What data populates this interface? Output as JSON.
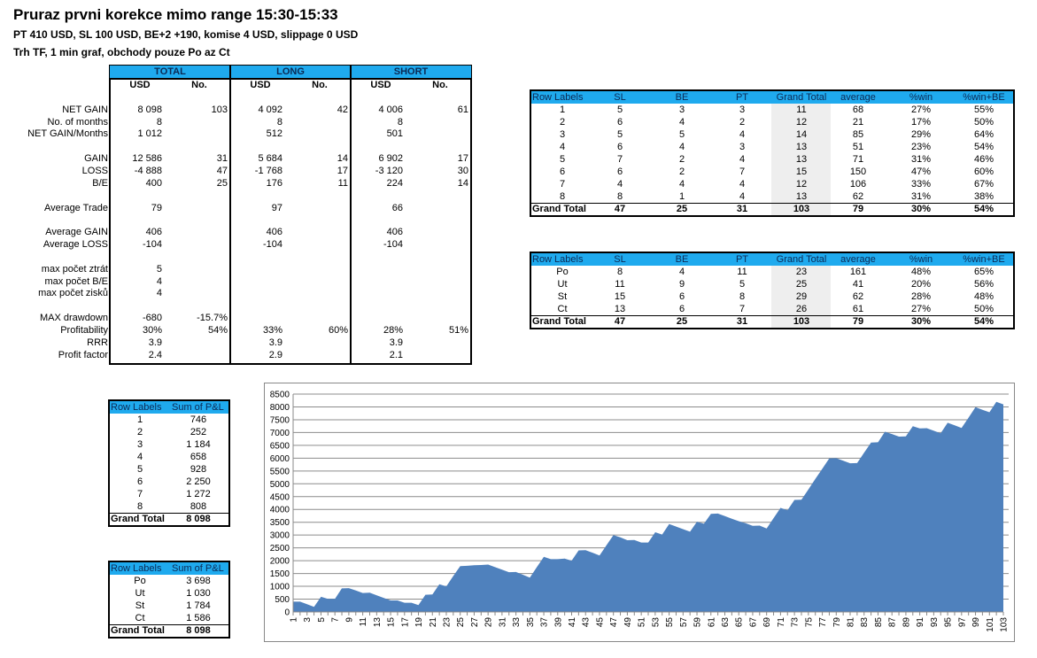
{
  "header": {
    "title": "Pruraz prvni korekce mimo range 15:30-15:33",
    "params": "PT 410 USD,  SL 100 USD,  BE+2  +190,  komise 4 USD, slippage 0 USD",
    "market": "Trh TF, 1 min graf, obchody pouze Po az Ct"
  },
  "stats": {
    "groups": [
      "TOTAL",
      "LONG",
      "SHORT"
    ],
    "subheaders": [
      "USD",
      "No."
    ],
    "rows": [
      {
        "label": "NET GAIN",
        "slot": 2,
        "v": [
          "8 098",
          "103",
          "4 092",
          "42",
          "4 006",
          "61"
        ]
      },
      {
        "label": "No. of months",
        "slot": 3,
        "v": [
          "8",
          "",
          "8",
          "",
          "8",
          ""
        ]
      },
      {
        "label": "NET GAIN/Months",
        "slot": 4,
        "v": [
          "1 012",
          "",
          "512",
          "",
          "501",
          ""
        ]
      },
      {
        "label": "GAIN",
        "slot": 6,
        "v": [
          "12 586",
          "31",
          "5 684",
          "14",
          "6 902",
          "17"
        ]
      },
      {
        "label": "LOSS",
        "slot": 7,
        "v": [
          "-4 888",
          "47",
          "-1 768",
          "17",
          "-3 120",
          "30"
        ]
      },
      {
        "label": "B/E",
        "slot": 8,
        "v": [
          "400",
          "25",
          "176",
          "11",
          "224",
          "14"
        ]
      },
      {
        "label": "Average Trade",
        "slot": 10,
        "v": [
          "79",
          "",
          "97",
          "",
          "66",
          ""
        ]
      },
      {
        "label": "Average GAIN",
        "slot": 12,
        "v": [
          "406",
          "",
          "406",
          "",
          "406",
          ""
        ]
      },
      {
        "label": "Average LOSS",
        "slot": 13,
        "v": [
          "-104",
          "",
          "-104",
          "",
          "-104",
          ""
        ]
      },
      {
        "label": "max počet ztrát",
        "slot": 15,
        "v": [
          "5",
          "",
          "",
          "",
          "",
          ""
        ]
      },
      {
        "label": "max počet B/E",
        "slot": 16,
        "v": [
          "4",
          "",
          "",
          "",
          "",
          ""
        ]
      },
      {
        "label": "max počet zisků",
        "slot": 17,
        "v": [
          "4",
          "",
          "",
          "",
          "",
          ""
        ]
      },
      {
        "label": "MAX drawdown",
        "slot": 19,
        "v": [
          "-680",
          "-15.7%",
          "",
          "",
          "",
          ""
        ]
      },
      {
        "label": "Profitability",
        "slot": 20,
        "v": [
          "30%",
          "54%",
          "33%",
          "60%",
          "28%",
          "51%"
        ]
      },
      {
        "label": "RRR",
        "slot": 21,
        "v": [
          "3.9",
          "",
          "3.9",
          "",
          "3.9",
          ""
        ]
      },
      {
        "label": "Profit factor",
        "slot": 22,
        "v": [
          "2.4",
          "",
          "2.9",
          "",
          "2.1",
          ""
        ]
      }
    ]
  },
  "pivot_month": {
    "columns": [
      "Row Labels",
      "SL",
      "BE",
      "PT",
      "Grand Total",
      "average",
      "%win",
      "%win+BE"
    ],
    "rows": [
      [
        "1",
        "5",
        "3",
        "3",
        "11",
        "68",
        "27%",
        "55%"
      ],
      [
        "2",
        "6",
        "4",
        "2",
        "12",
        "21",
        "17%",
        "50%"
      ],
      [
        "3",
        "5",
        "5",
        "4",
        "14",
        "85",
        "29%",
        "64%"
      ],
      [
        "4",
        "6",
        "4",
        "3",
        "13",
        "51",
        "23%",
        "54%"
      ],
      [
        "5",
        "7",
        "2",
        "4",
        "13",
        "71",
        "31%",
        "46%"
      ],
      [
        "6",
        "6",
        "2",
        "7",
        "15",
        "150",
        "47%",
        "60%"
      ],
      [
        "7",
        "4",
        "4",
        "4",
        "12",
        "106",
        "33%",
        "67%"
      ],
      [
        "8",
        "8",
        "1",
        "4",
        "13",
        "62",
        "31%",
        "38%"
      ]
    ],
    "total": [
      "Grand Total",
      "47",
      "25",
      "31",
      "103",
      "79",
      "30%",
      "54%"
    ]
  },
  "pivot_day": {
    "columns": [
      "Row Labels",
      "SL",
      "BE",
      "PT",
      "Grand Total",
      "average",
      "%win",
      "%win+BE"
    ],
    "rows": [
      [
        "Po",
        "8",
        "4",
        "11",
        "23",
        "161",
        "48%",
        "65%"
      ],
      [
        "Ut",
        "11",
        "9",
        "5",
        "25",
        "41",
        "20%",
        "56%"
      ],
      [
        "St",
        "15",
        "6",
        "8",
        "29",
        "62",
        "28%",
        "48%"
      ],
      [
        "Ct",
        "13",
        "6",
        "7",
        "26",
        "61",
        "27%",
        "50%"
      ]
    ],
    "total": [
      "Grand Total",
      "47",
      "25",
      "31",
      "103",
      "79",
      "30%",
      "54%"
    ]
  },
  "pnl_month": {
    "columns": [
      "Row Labels",
      "Sum of P&L"
    ],
    "rows": [
      [
        "1",
        "746"
      ],
      [
        "2",
        "252"
      ],
      [
        "3",
        "1 184"
      ],
      [
        "4",
        "658"
      ],
      [
        "5",
        "928"
      ],
      [
        "6",
        "2 250"
      ],
      [
        "7",
        "1 272"
      ],
      [
        "8",
        "808"
      ]
    ],
    "total": [
      "Grand Total",
      "8 098"
    ]
  },
  "pnl_day": {
    "columns": [
      "Row Labels",
      "Sum of P&L"
    ],
    "rows": [
      [
        "Po",
        "3 698"
      ],
      [
        "Ut",
        "1 030"
      ],
      [
        "St",
        "1 784"
      ],
      [
        "Ct",
        "1 586"
      ]
    ],
    "total": [
      "Grand Total",
      "8 098"
    ]
  },
  "colors": {
    "header": "#1FAAEE",
    "area": "#4F81BD",
    "grid": "#8C8C8C"
  },
  "chart_data": {
    "type": "area",
    "title": "",
    "xlabel": "",
    "ylabel": "",
    "ylim": [
      0,
      8500
    ],
    "yticks": [
      0,
      500,
      1000,
      1500,
      2000,
      2500,
      3000,
      3500,
      4000,
      4500,
      5000,
      5500,
      6000,
      6500,
      7000,
      7500,
      8000,
      8500
    ],
    "grid": true,
    "legend": "none",
    "x_label_step": 2,
    "values": [
      400,
      400,
      300,
      200,
      590,
      510,
      510,
      920,
      930,
      840,
      740,
      750,
      650,
      550,
      450,
      450,
      360,
      360,
      270,
      670,
      680,
      1080,
      1000,
      1400,
      1790,
      1800,
      1820,
      1830,
      1850,
      1750,
      1650,
      1550,
      1560,
      1450,
      1340,
      1750,
      2150,
      2060,
      2060,
      2080,
      2000,
      2400,
      2410,
      2310,
      2200,
      2600,
      3000,
      2910,
      2800,
      2810,
      2710,
      2710,
      3110,
      3020,
      3430,
      3330,
      3230,
      3130,
      3520,
      3440,
      3830,
      3840,
      3740,
      3640,
      3540,
      3460,
      3360,
      3370,
      3260,
      3660,
      4060,
      3970,
      4370,
      4380,
      4780,
      5190,
      5590,
      5990,
      6000,
      5900,
      5800,
      5810,
      6210,
      6610,
      6620,
      7030,
      6940,
      6840,
      6850,
      7250,
      7160,
      7170,
      7070,
      6970,
      7380,
      7280,
      7180,
      7580,
      7990,
      7890,
      7790,
      8200,
      8098
    ]
  }
}
